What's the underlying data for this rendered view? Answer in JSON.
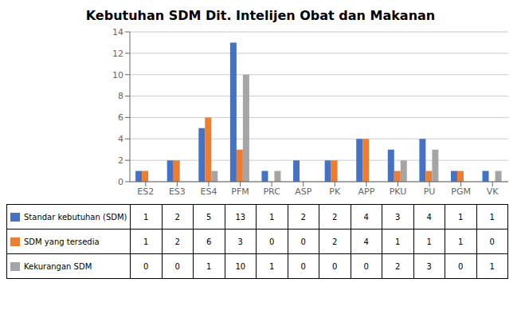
{
  "chart_data": {
    "type": "bar",
    "title": "Kebutuhan SDM Dit. Intelijen Obat dan Makanan",
    "categories": [
      "ES2",
      "ES3",
      "ES4",
      "PFM",
      "PRC",
      "ASP",
      "PK",
      "APP",
      "PKU",
      "PU",
      "PGM",
      "VK"
    ],
    "series": [
      {
        "name": "Standar kebutuhan (SDM)",
        "color": "#4472C4",
        "values": [
          1,
          2,
          5,
          13,
          1,
          2,
          2,
          4,
          3,
          4,
          1,
          1
        ]
      },
      {
        "name": "SDM yang tersedia",
        "color": "#ED7D31",
        "values": [
          1,
          2,
          6,
          3,
          0,
          0,
          2,
          4,
          1,
          1,
          1,
          0
        ]
      },
      {
        "name": "Kekurangan SDM",
        "color": "#A5A5A5",
        "values": [
          0,
          0,
          1,
          10,
          1,
          0,
          0,
          0,
          2,
          3,
          0,
          1
        ]
      }
    ],
    "ylim": [
      0,
      14
    ],
    "yticks": [
      0,
      2,
      4,
      6,
      8,
      10,
      12,
      14
    ],
    "grid": true,
    "legend": "bottom"
  }
}
